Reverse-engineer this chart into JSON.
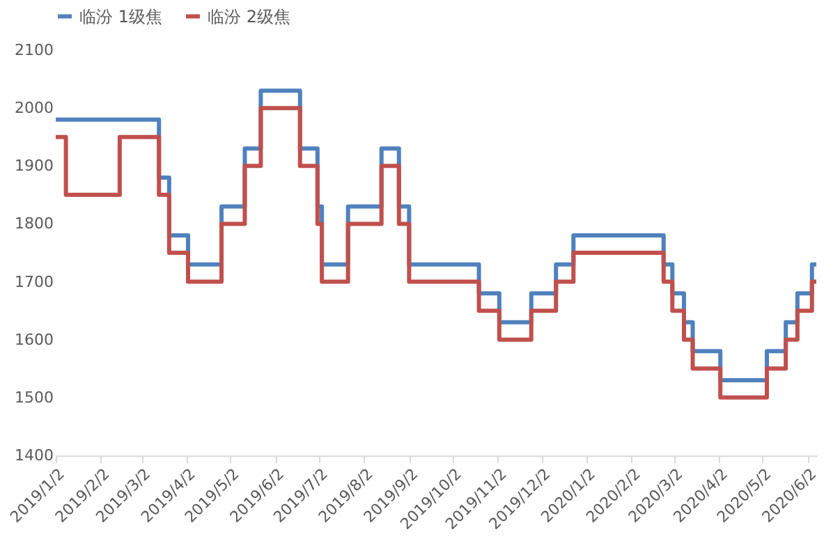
{
  "chart_data": {
    "type": "step",
    "legend": "top",
    "grid": false,
    "line_style": "solid",
    "marker": "none",
    "ylim": [
      1400,
      2100
    ],
    "yticks": [
      1400,
      1500,
      1600,
      1700,
      1800,
      1900,
      2000,
      2100
    ],
    "xlim": [
      "2019-01-02",
      "2020-06-08"
    ],
    "xticks": [
      {
        "value": "2019-01-02",
        "label": "2019/1/2"
      },
      {
        "value": "2019-02-02",
        "label": "2019/2/2"
      },
      {
        "value": "2019-03-02",
        "label": "2019/3/2"
      },
      {
        "value": "2019-04-02",
        "label": "2019/4/2"
      },
      {
        "value": "2019-05-02",
        "label": "2019/5/2"
      },
      {
        "value": "2019-06-02",
        "label": "2019/6/2"
      },
      {
        "value": "2019-07-02",
        "label": "2019/7/2"
      },
      {
        "value": "2019-08-02",
        "label": "2019/8/2"
      },
      {
        "value": "2019-09-02",
        "label": "2019/9/2"
      },
      {
        "value": "2019-10-02",
        "label": "2019/10/2"
      },
      {
        "value": "2019-11-02",
        "label": "2019/11/2"
      },
      {
        "value": "2019-12-02",
        "label": "2019/12/2"
      },
      {
        "value": "2020-01-02",
        "label": "2020/1/2"
      },
      {
        "value": "2020-02-02",
        "label": "2020/2/2"
      },
      {
        "value": "2020-03-02",
        "label": "2020/3/2"
      },
      {
        "value": "2020-04-02",
        "label": "2020/4/2"
      },
      {
        "value": "2020-05-02",
        "label": "2020/5/2"
      },
      {
        "value": "2020-06-02",
        "label": "2020/6/2"
      }
    ],
    "series": [
      {
        "name": "临汾 1级焦",
        "color": "#4f81bd",
        "x": [
          "2019-01-02",
          "2019-03-14",
          "2019-03-21",
          "2019-04-03",
          "2019-04-26",
          "2019-05-12",
          "2019-05-23",
          "2019-06-19",
          "2019-07-01",
          "2019-07-04",
          "2019-07-22",
          "2019-08-14",
          "2019-08-26",
          "2019-09-02",
          "2019-10-20",
          "2019-11-03",
          "2019-11-25",
          "2019-12-12",
          "2019-12-24",
          "2020-02-24",
          "2020-03-01",
          "2020-03-09",
          "2020-03-15",
          "2020-04-03",
          "2020-05-05",
          "2020-05-18",
          "2020-05-26",
          "2020-06-05",
          "2020-06-08"
        ],
        "values": [
          1980,
          1880,
          1780,
          1730,
          1830,
          1930,
          2030,
          1930,
          1830,
          1730,
          1830,
          1930,
          1830,
          1730,
          1680,
          1630,
          1680,
          1730,
          1780,
          1730,
          1680,
          1630,
          1580,
          1530,
          1580,
          1630,
          1680,
          1730,
          1730
        ]
      },
      {
        "name": "临汾 2级焦",
        "color": "#c0504d",
        "x": [
          "2019-01-02",
          "2019-01-09",
          "2019-02-15",
          "2019-03-14",
          "2019-03-21",
          "2019-04-03",
          "2019-04-26",
          "2019-05-12",
          "2019-05-23",
          "2019-06-19",
          "2019-07-01",
          "2019-07-04",
          "2019-07-22",
          "2019-08-14",
          "2019-08-26",
          "2019-09-02",
          "2019-10-20",
          "2019-11-03",
          "2019-11-25",
          "2019-12-12",
          "2019-12-24",
          "2020-02-24",
          "2020-03-01",
          "2020-03-09",
          "2020-03-15",
          "2020-04-03",
          "2020-05-05",
          "2020-05-18",
          "2020-05-26",
          "2020-06-05",
          "2020-06-08"
        ],
        "values": [
          1950,
          1850,
          1950,
          1850,
          1750,
          1700,
          1800,
          1900,
          2000,
          1900,
          1800,
          1700,
          1800,
          1900,
          1800,
          1700,
          1650,
          1600,
          1650,
          1700,
          1750,
          1700,
          1650,
          1600,
          1550,
          1500,
          1550,
          1600,
          1650,
          1700,
          1700
        ]
      }
    ]
  }
}
